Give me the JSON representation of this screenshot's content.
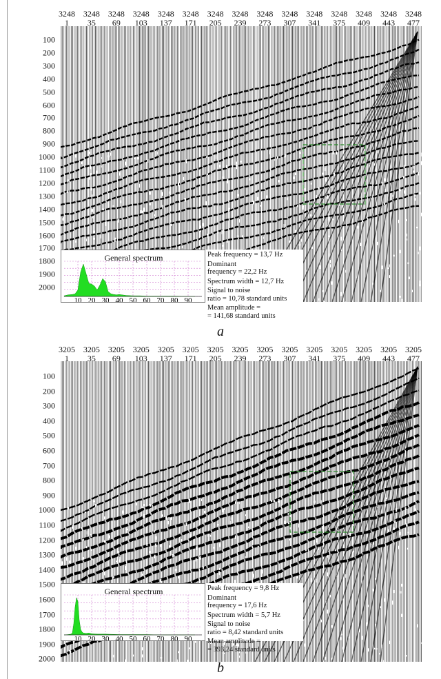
{
  "panels": [
    {
      "id": "a",
      "caption": "a",
      "header_top": "3248",
      "header_ticks": [
        "1",
        "35",
        "69",
        "103",
        "137",
        "171",
        "205",
        "239",
        "273",
        "307",
        "341",
        "375",
        "409",
        "443",
        "477"
      ],
      "y_ticks": [
        "100",
        "200",
        "300",
        "400",
        "500",
        "600",
        "700",
        "800",
        "900",
        "1000",
        "1100",
        "1200",
        "1300",
        "1400",
        "1500",
        "1600",
        "1700",
        "1800",
        "1900",
        "2000"
      ],
      "spectrum": {
        "title": "General spectrum",
        "x_ticks": [
          "10",
          "20",
          "30",
          "40",
          "50",
          "60",
          "70",
          "80",
          "90"
        ],
        "chart_data": {
          "type": "area",
          "x": [
            0,
            3,
            6,
            8,
            10,
            12,
            14,
            16,
            18,
            20,
            22,
            24,
            26,
            28,
            30,
            32,
            34,
            36,
            38,
            40,
            45,
            50,
            55,
            60,
            70,
            80,
            90,
            95
          ],
          "values": [
            0.02,
            0.05,
            0.06,
            0.08,
            0.2,
            0.75,
            1.0,
            0.7,
            0.4,
            0.38,
            0.32,
            0.2,
            0.35,
            0.55,
            0.45,
            0.15,
            0.08,
            0.06,
            0.05,
            0.06,
            0.03,
            0.02,
            0.02,
            0.01,
            0.01,
            0.01,
            0.0,
            0.0
          ],
          "color": "#22dd22"
        }
      },
      "info": {
        "peak": "Peak frequency = 13,7 Hz",
        "dominant_1": "Dominant",
        "dominant_2": "frequency = 22,2 Hz",
        "width": "Spectrum width = 12,7 Hz",
        "snr_1": "Signal to noise",
        "snr_2": "ratio = 10,78 standard units",
        "amp_1": "Mean amplitude =",
        "amp_2": "= 141,68 standard units"
      },
      "highlight_color": "#2a8a2a"
    },
    {
      "id": "b",
      "caption": "b",
      "header_top": "3205",
      "header_ticks": [
        "1",
        "35",
        "69",
        "103",
        "137",
        "171",
        "205",
        "239",
        "273",
        "307",
        "341",
        "375",
        "409",
        "443",
        "477"
      ],
      "y_ticks": [
        "100",
        "200",
        "300",
        "400",
        "500",
        "600",
        "700",
        "800",
        "900",
        "1000",
        "1100",
        "1200",
        "1300",
        "1400",
        "1500",
        "1600",
        "1700",
        "1800",
        "1900",
        "2000"
      ],
      "spectrum": {
        "title": "General spectrum",
        "x_ticks": [
          "10",
          "20",
          "30",
          "40",
          "50",
          "60",
          "70",
          "80",
          "90"
        ],
        "chart_data": {
          "type": "area",
          "x": [
            0,
            3,
            5,
            6,
            7,
            8,
            9,
            10,
            11,
            12,
            13,
            14,
            16,
            18,
            20,
            24,
            30,
            40,
            50,
            60,
            70,
            80,
            90,
            95
          ],
          "values": [
            0.0,
            0.01,
            0.02,
            0.05,
            0.3,
            0.75,
            1.0,
            0.9,
            0.4,
            0.15,
            0.08,
            0.05,
            0.04,
            0.05,
            0.03,
            0.02,
            0.02,
            0.01,
            0.01,
            0.01,
            0.0,
            0.0,
            0.0,
            0.0
          ],
          "color": "#22dd22"
        }
      },
      "info": {
        "peak": "Peak frequency = 9,8 Hz",
        "dominant_1": "Dominant",
        "dominant_2": "frequency = 17,6 Hz",
        "width": "Spectrum width = 5,7 Hz",
        "snr_1": "Signal to noise",
        "snr_2": "ratio = 8,42 standard units",
        "amp_1": "Mean amplitude =",
        "amp_2": "= 393,24 standard units"
      },
      "highlight_color": "#2a8a2a"
    }
  ]
}
